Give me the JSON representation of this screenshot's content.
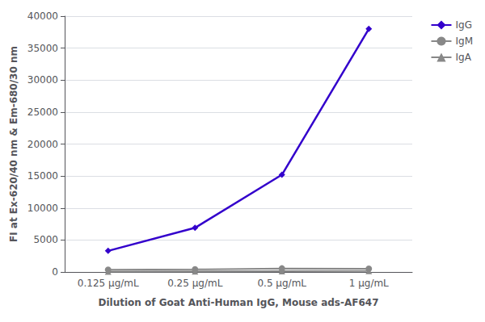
{
  "chart_data": {
    "type": "line",
    "xlabel": "Dilution of Goat Anti-Human IgG, Mouse ads-AF647",
    "ylabel": "FI at Ex-620/40 nm & Em-680/30 nm",
    "categories": [
      "0.125 μg/mL",
      "0.25 μg/mL",
      "0.5 μg/mL",
      "1 μg/mL"
    ],
    "series": [
      {
        "name": "IgG",
        "color": "#3300cc",
        "marker": "diamond",
        "values": [
          3300,
          6900,
          15200,
          38000
        ]
      },
      {
        "name": "IgM",
        "color": "#888888",
        "marker": "circle",
        "values": [
          350,
          400,
          550,
          500
        ]
      },
      {
        "name": "IgA",
        "color": "#888888",
        "marker": "triangle",
        "values": [
          50,
          100,
          120,
          150
        ]
      }
    ],
    "ylim": [
      0,
      40000
    ],
    "yticks": [
      0,
      5000,
      10000,
      15000,
      20000,
      25000,
      30000,
      35000,
      40000
    ],
    "grid": true,
    "legend": "right"
  }
}
